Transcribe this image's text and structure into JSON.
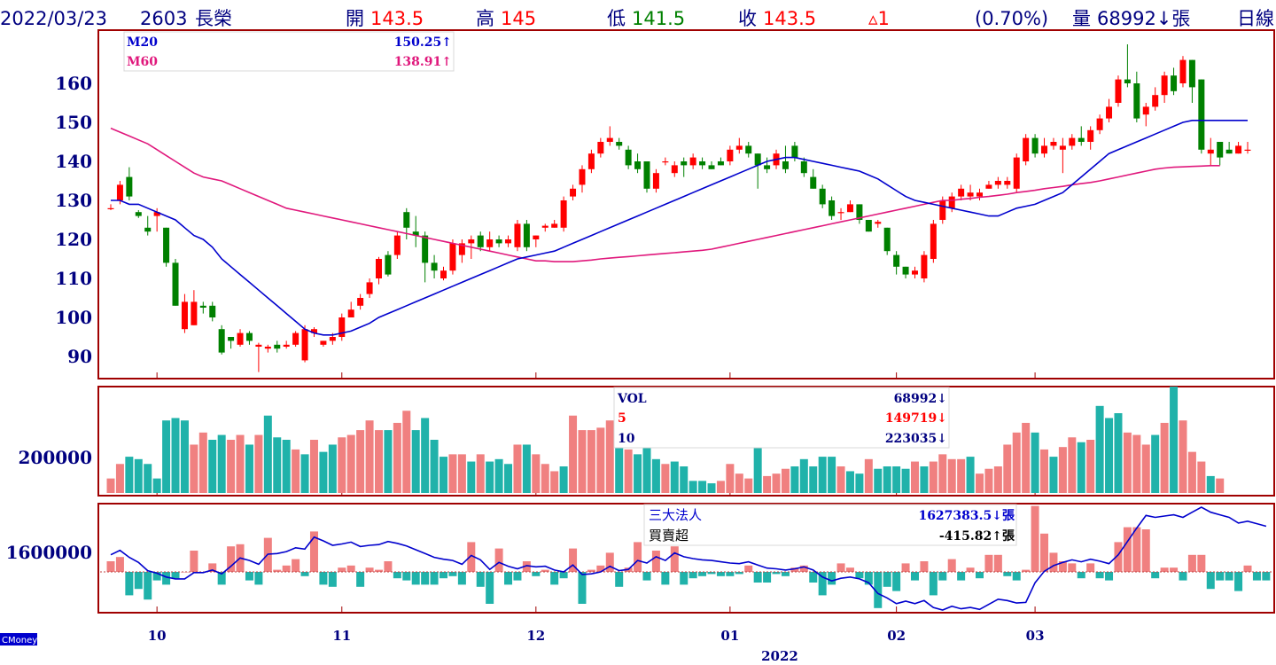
{
  "header": {
    "date": "2022/03/23",
    "code": "2603",
    "name": "長榮",
    "open_label": "開",
    "open": "143.5",
    "high_label": "高",
    "high": "145",
    "low_label": "低",
    "low": "141.5",
    "close_label": "收",
    "close": "143.5",
    "change": "▵1",
    "change_pct": "(0.70%)",
    "volume_label": "量",
    "volume": "68992↓張",
    "period": "日線"
  },
  "price_legend": {
    "m20_label": "M20",
    "m20_value": "150.25↑",
    "m60_label": "M60",
    "m60_value": "138.91↑"
  },
  "volume_legend": {
    "vol_label": "VOL",
    "vol_value": "68992↓",
    "ma5_label": "5",
    "ma5_value": "149719↓",
    "ma10_label": "10",
    "ma10_value": "223035↓"
  },
  "inst_legend": {
    "title": "三大法人",
    "title_value": "1627383.5↓張",
    "sub": "買賣超",
    "sub_value": "-415.82↑張"
  },
  "brand": "CMoney",
  "colors": {
    "up": "#ff0000",
    "down": "#008000",
    "vol_up": "#f08080",
    "vol_down": "#20b2aa",
    "m20": "#0000cd",
    "m60": "#e0187c",
    "frame": "#a00000",
    "axis_text": "#000080"
  },
  "chart_data": {
    "type": "candlestick",
    "price_axis": {
      "ticks": [
        90,
        100,
        110,
        120,
        130,
        140,
        150,
        160
      ],
      "range": [
        86,
        171
      ]
    },
    "x_labels": [
      {
        "label": "10",
        "index": 5
      },
      {
        "label": "11",
        "index": 25
      },
      {
        "label": "12",
        "index": 46
      },
      {
        "label": "01",
        "index": 67
      },
      {
        "label": "02",
        "index": 85
      },
      {
        "label": "03",
        "index": 100
      }
    ],
    "x_year": "2022",
    "candles": [
      [
        128,
        128,
        129,
        127.5
      ],
      [
        130,
        134,
        135,
        129
      ],
      [
        136,
        131,
        138.5,
        130
      ],
      [
        127,
        126,
        127.5,
        125.5
      ],
      [
        123,
        122,
        126,
        121
      ],
      [
        126,
        127,
        128,
        122
      ],
      [
        123,
        114,
        123,
        113
      ],
      [
        114,
        103,
        115,
        103
      ],
      [
        97,
        104,
        106,
        96
      ],
      [
        98,
        104,
        107,
        98
      ],
      [
        103,
        102.5,
        104,
        101
      ],
      [
        103,
        100,
        104,
        99
      ],
      [
        97,
        91,
        98,
        90.5
      ],
      [
        95,
        94,
        95,
        92
      ],
      [
        93,
        96,
        97,
        92.5
      ],
      [
        96,
        94,
        96.5,
        93
      ],
      [
        92.5,
        93,
        93.5,
        86
      ],
      [
        92,
        92.5,
        93,
        91
      ],
      [
        93,
        92,
        94,
        91
      ],
      [
        92.5,
        93,
        94,
        92
      ],
      [
        93,
        96,
        96.5,
        92.5
      ],
      [
        89,
        97,
        98,
        88.5
      ],
      [
        96,
        97,
        97.5,
        95
      ],
      [
        93,
        94,
        94,
        92.5
      ],
      [
        94,
        95,
        96,
        93
      ],
      [
        95,
        100,
        101,
        94
      ],
      [
        100,
        102,
        104,
        100
      ],
      [
        103,
        105,
        106,
        102
      ],
      [
        106,
        109,
        110,
        105
      ],
      [
        110,
        115,
        115.5,
        108.5
      ],
      [
        116,
        111,
        117,
        110.5
      ],
      [
        116,
        121,
        122,
        115
      ],
      [
        127,
        123,
        128,
        120
      ],
      [
        122,
        121,
        126,
        118
      ],
      [
        121,
        114,
        122,
        109
      ],
      [
        114,
        112,
        116,
        110
      ],
      [
        110,
        112,
        113,
        109.5
      ],
      [
        112,
        119,
        120,
        111
      ],
      [
        116,
        119,
        120,
        114
      ],
      [
        119,
        120,
        121,
        115
      ],
      [
        121,
        118,
        122,
        117
      ],
      [
        118,
        120,
        122,
        117
      ],
      [
        120,
        119,
        121,
        118
      ],
      [
        119,
        120,
        121,
        118
      ],
      [
        118,
        124,
        125,
        117
      ],
      [
        124,
        118,
        125,
        117
      ],
      [
        120,
        121,
        121,
        118
      ],
      [
        123,
        123.5,
        124,
        122
      ],
      [
        123,
        124,
        125,
        123
      ],
      [
        123,
        130,
        131,
        122
      ],
      [
        131,
        133,
        134,
        130
      ],
      [
        134,
        138,
        139,
        132
      ],
      [
        138,
        142,
        143,
        137
      ],
      [
        142,
        145,
        146,
        141
      ],
      [
        145,
        146,
        149,
        144
      ],
      [
        145,
        144,
        146,
        143
      ],
      [
        143,
        139,
        144,
        138
      ],
      [
        140,
        138,
        142,
        137
      ],
      [
        140,
        133,
        140,
        132
      ],
      [
        133,
        137,
        138,
        132
      ],
      [
        140,
        140,
        141,
        139
      ],
      [
        137,
        139,
        140,
        136
      ],
      [
        140,
        139,
        141,
        136
      ],
      [
        139,
        141,
        142,
        138
      ],
      [
        140,
        139,
        141,
        138
      ],
      [
        139,
        138,
        140,
        138
      ],
      [
        140,
        139,
        141,
        139
      ],
      [
        140,
        143,
        144,
        139
      ],
      [
        143,
        144,
        146,
        142
      ],
      [
        144,
        142,
        145,
        141
      ],
      [
        142,
        139,
        142,
        133
      ],
      [
        139,
        138,
        141,
        137
      ],
      [
        139,
        142,
        143,
        138
      ],
      [
        140,
        138,
        144,
        137
      ],
      [
        144,
        141,
        145,
        140
      ],
      [
        140,
        137,
        141,
        136
      ],
      [
        136,
        133,
        138,
        133
      ],
      [
        133,
        129,
        134,
        128
      ],
      [
        130,
        126,
        131,
        125
      ],
      [
        127,
        127,
        128,
        125
      ],
      [
        127,
        129,
        130,
        127
      ],
      [
        129,
        125,
        129,
        124
      ],
      [
        125,
        122,
        125,
        122
      ],
      [
        124,
        124.5,
        125,
        123
      ],
      [
        123,
        117,
        123,
        116
      ],
      [
        116,
        113,
        117,
        111
      ],
      [
        113,
        111,
        113,
        110
      ],
      [
        111,
        112,
        113,
        110
      ],
      [
        110,
        116,
        117,
        109
      ],
      [
        115,
        124,
        125,
        114
      ],
      [
        125,
        130,
        131,
        124
      ],
      [
        128,
        131,
        132,
        127
      ],
      [
        131,
        133,
        134,
        130
      ],
      [
        131,
        132,
        134,
        130
      ],
      [
        131,
        132,
        133,
        130
      ],
      [
        133,
        134,
        135,
        133
      ],
      [
        134,
        135,
        136,
        133
      ],
      [
        134,
        135,
        136,
        133
      ],
      [
        133,
        141,
        142,
        132
      ],
      [
        140,
        146,
        147,
        139
      ],
      [
        146,
        142,
        147,
        141
      ],
      [
        142,
        144,
        146,
        141
      ],
      [
        144,
        145,
        146,
        143
      ],
      [
        143,
        144,
        146,
        137
      ],
      [
        144,
        146,
        147,
        143
      ],
      [
        146,
        145,
        149,
        144
      ],
      [
        145,
        148,
        149,
        143
      ],
      [
        148,
        151,
        152,
        147
      ],
      [
        151,
        154,
        156,
        150
      ],
      [
        155,
        161,
        162,
        154
      ],
      [
        161,
        160,
        170,
        159
      ],
      [
        160,
        151,
        163,
        150
      ],
      [
        152,
        154,
        155,
        149
      ],
      [
        154,
        157,
        159,
        153
      ],
      [
        157,
        162,
        163,
        155
      ],
      [
        162,
        158,
        164,
        157
      ],
      [
        160,
        166,
        167,
        159
      ],
      [
        166,
        159,
        166,
        155
      ],
      [
        161,
        143,
        161,
        142
      ],
      [
        142,
        143,
        146,
        139
      ],
      [
        145,
        141,
        145,
        139
      ],
      [
        143,
        142,
        145,
        142
      ],
      [
        142,
        144,
        145,
        142
      ],
      [
        143,
        143,
        145,
        142
      ]
    ],
    "m20": [
      130,
      130,
      129,
      129,
      128,
      127,
      126,
      125,
      123,
      121,
      120,
      118,
      115,
      113,
      111,
      109,
      107,
      105,
      103,
      101,
      99,
      97,
      96,
      95.5,
      95.5,
      96,
      96.5,
      97.5,
      98.5,
      100,
      101,
      102,
      103,
      104,
      105,
      106,
      107,
      108,
      109,
      110,
      111,
      112,
      113,
      114,
      115,
      115.5,
      116,
      116.5,
      117,
      118,
      119,
      120,
      121,
      122,
      123,
      124,
      125,
      126,
      127,
      128,
      129,
      130,
      131,
      132,
      133,
      134,
      135,
      136,
      137,
      138,
      139,
      140,
      140.5,
      141,
      141,
      140.5,
      140,
      139.5,
      139,
      138.5,
      138,
      137.5,
      136.5,
      135.5,
      134,
      132.5,
      131,
      130,
      129.5,
      129,
      128.5,
      128,
      127.5,
      127,
      126.5,
      126,
      126,
      127,
      128,
      128.5,
      129,
      130,
      131,
      132,
      134,
      136,
      138,
      140,
      142,
      143,
      144,
      145,
      146,
      147,
      148,
      149,
      150,
      150.5,
      150.5,
      150.5,
      150.5,
      150.5,
      150.5,
      150.5
    ],
    "m60": [
      148.5,
      147.5,
      146.5,
      145.5,
      144.5,
      143,
      141.5,
      140,
      138.5,
      137,
      136,
      135.5,
      135,
      134,
      133,
      132,
      131,
      130,
      129,
      128,
      127.5,
      127,
      126.5,
      126,
      125.5,
      125,
      124.5,
      124,
      123.5,
      123,
      122.5,
      122,
      121.5,
      121,
      120.5,
      120,
      119.5,
      119,
      118.5,
      118,
      117.5,
      117,
      116.5,
      116,
      115.5,
      115,
      114.5,
      114.5,
      114.3,
      114.3,
      114.3,
      114.5,
      114.7,
      115,
      115.2,
      115.4,
      115.6,
      115.8,
      116,
      116.2,
      116.4,
      116.6,
      116.8,
      117,
      117.2,
      117.5,
      118,
      118.5,
      119,
      119.5,
      120,
      120.5,
      121,
      121.5,
      122,
      122.5,
      123,
      123.5,
      124,
      124.5,
      125,
      125.5,
      126,
      126.5,
      127,
      127.5,
      128,
      128.5,
      129,
      129.5,
      130,
      130,
      130.3,
      130.5,
      130.8,
      131,
      131.3,
      131.6,
      132,
      132.3,
      132.6,
      133,
      133.3,
      133.6,
      134,
      134.3,
      134.6,
      135,
      135.5,
      136,
      136.5,
      137,
      137.5,
      138,
      138.3,
      138.5,
      138.6,
      138.7,
      138.8,
      138.9,
      138.91
    ],
    "volume_axis": {
      "ticks": [
        200000
      ],
      "max": 400000
    },
    "volume": [
      [
        60000,
        1
      ],
      [
        120000,
        1
      ],
      [
        150000,
        0
      ],
      [
        140000,
        0
      ],
      [
        120000,
        0
      ],
      [
        60000,
        0
      ],
      [
        300000,
        0
      ],
      [
        310000,
        0
      ],
      [
        300000,
        0
      ],
      [
        200000,
        1
      ],
      [
        250000,
        1
      ],
      [
        220000,
        0
      ],
      [
        240000,
        0
      ],
      [
        220000,
        1
      ],
      [
        240000,
        1
      ],
      [
        200000,
        0
      ],
      [
        240000,
        1
      ],
      [
        320000,
        0
      ],
      [
        230000,
        0
      ],
      [
        220000,
        0
      ],
      [
        180000,
        1
      ],
      [
        160000,
        0
      ],
      [
        220000,
        1
      ],
      [
        170000,
        0
      ],
      [
        200000,
        0
      ],
      [
        230000,
        1
      ],
      [
        240000,
        1
      ],
      [
        260000,
        1
      ],
      [
        300000,
        1
      ],
      [
        260000,
        1
      ],
      [
        260000,
        0
      ],
      [
        290000,
        1
      ],
      [
        340000,
        1
      ],
      [
        260000,
        0
      ],
      [
        310000,
        0
      ],
      [
        220000,
        0
      ],
      [
        150000,
        0
      ],
      [
        160000,
        1
      ],
      [
        160000,
        1
      ],
      [
        130000,
        0
      ],
      [
        160000,
        1
      ],
      [
        130000,
        0
      ],
      [
        140000,
        0
      ],
      [
        120000,
        0
      ],
      [
        200000,
        1
      ],
      [
        200000,
        0
      ],
      [
        160000,
        1
      ],
      [
        120000,
        1
      ],
      [
        90000,
        1
      ],
      [
        110000,
        0
      ],
      [
        320000,
        1
      ],
      [
        260000,
        1
      ],
      [
        260000,
        1
      ],
      [
        270000,
        1
      ],
      [
        300000,
        1
      ],
      [
        290000,
        0
      ],
      [
        180000,
        1
      ],
      [
        160000,
        0
      ],
      [
        190000,
        0
      ],
      [
        140000,
        0
      ],
      [
        120000,
        1
      ],
      [
        130000,
        0
      ],
      [
        110000,
        0
      ],
      [
        50000,
        0
      ],
      [
        50000,
        0
      ],
      [
        40000,
        0
      ],
      [
        50000,
        1
      ],
      [
        120000,
        1
      ],
      [
        80000,
        1
      ],
      [
        60000,
        1
      ],
      [
        190000,
        0
      ],
      [
        70000,
        1
      ],
      [
        80000,
        1
      ],
      [
        100000,
        1
      ],
      [
        110000,
        0
      ],
      [
        140000,
        0
      ],
      [
        110000,
        0
      ],
      [
        150000,
        0
      ],
      [
        150000,
        0
      ],
      [
        110000,
        1
      ],
      [
        90000,
        0
      ],
      [
        80000,
        0
      ],
      [
        140000,
        1
      ],
      [
        100000,
        0
      ],
      [
        110000,
        0
      ],
      [
        110000,
        0
      ],
      [
        100000,
        0
      ],
      [
        130000,
        1
      ],
      [
        110000,
        0
      ],
      [
        130000,
        1
      ],
      [
        160000,
        1
      ],
      [
        140000,
        1
      ],
      [
        140000,
        1
      ],
      [
        150000,
        0
      ],
      [
        80000,
        1
      ],
      [
        100000,
        1
      ],
      [
        110000,
        1
      ],
      [
        200000,
        1
      ],
      [
        250000,
        1
      ],
      [
        290000,
        1
      ],
      [
        250000,
        0
      ],
      [
        180000,
        1
      ],
      [
        150000,
        0
      ],
      [
        190000,
        1
      ],
      [
        230000,
        1
      ],
      [
        210000,
        0
      ],
      [
        220000,
        1
      ],
      [
        360000,
        0
      ],
      [
        310000,
        0
      ],
      [
        330000,
        0
      ],
      [
        250000,
        1
      ],
      [
        240000,
        1
      ],
      [
        200000,
        1
      ],
      [
        240000,
        0
      ],
      [
        290000,
        1
      ],
      [
        440000,
        0
      ],
      [
        300000,
        1
      ],
      [
        170000,
        1
      ],
      [
        130000,
        1
      ],
      [
        70000,
        0
      ],
      [
        60000,
        1
      ]
    ],
    "inst_axis": {
      "ticks": [
        1600000
      ]
    },
    "institutional_net": [
      0.5,
      0.7,
      -1.1,
      -0.8,
      -1.3,
      -0.4,
      -0.6,
      -0.3,
      0.0,
      1.0,
      0.0,
      0.4,
      -0.6,
      1.2,
      1.3,
      -0.4,
      -0.6,
      1.6,
      0.1,
      0.3,
      0.6,
      -0.2,
      1.9,
      -0.6,
      -0.7,
      0.2,
      0.3,
      -0.7,
      0.2,
      0.1,
      0.5,
      -0.3,
      -0.4,
      -0.6,
      -0.6,
      -0.6,
      -0.3,
      -0.2,
      -0.6,
      1.4,
      -0.7,
      -1.5,
      1.1,
      -0.6,
      -0.4,
      0.5,
      -0.2,
      0.1,
      -0.6,
      -0.3,
      1.1,
      -1.5,
      0.1,
      0.3,
      0.9,
      -0.7,
      0.2,
      1.4,
      -0.4,
      1.0,
      -0.6,
      1.2,
      -0.6,
      -0.3,
      -0.2,
      -0.1,
      -0.2,
      -0.2,
      -0.1,
      0.3,
      -0.5,
      -0.5,
      -0.1,
      -0.2,
      0.2,
      0.3,
      -0.5,
      -1.1,
      -0.6,
      0.4,
      0.2,
      -0.3,
      -0.6,
      -1.7,
      -0.7,
      -0.9,
      0.4,
      -0.4,
      0.5,
      -1.1,
      -0.4,
      0.6,
      -0.4,
      0.2,
      -0.3,
      0.8,
      0.8,
      -0.2,
      -0.4,
      0.1,
      3.1,
      1.8,
      0.9,
      0.5,
      0.4,
      -0.3,
      0.4,
      -0.3,
      -0.4,
      1.4,
      2.1,
      2.1,
      2.0,
      -0.3,
      0.2,
      0.2,
      -0.4,
      0.8,
      0.8,
      -0.8,
      -0.4,
      -0.4,
      -0.9,
      0.3,
      -0.4,
      -0.4
    ]
  }
}
